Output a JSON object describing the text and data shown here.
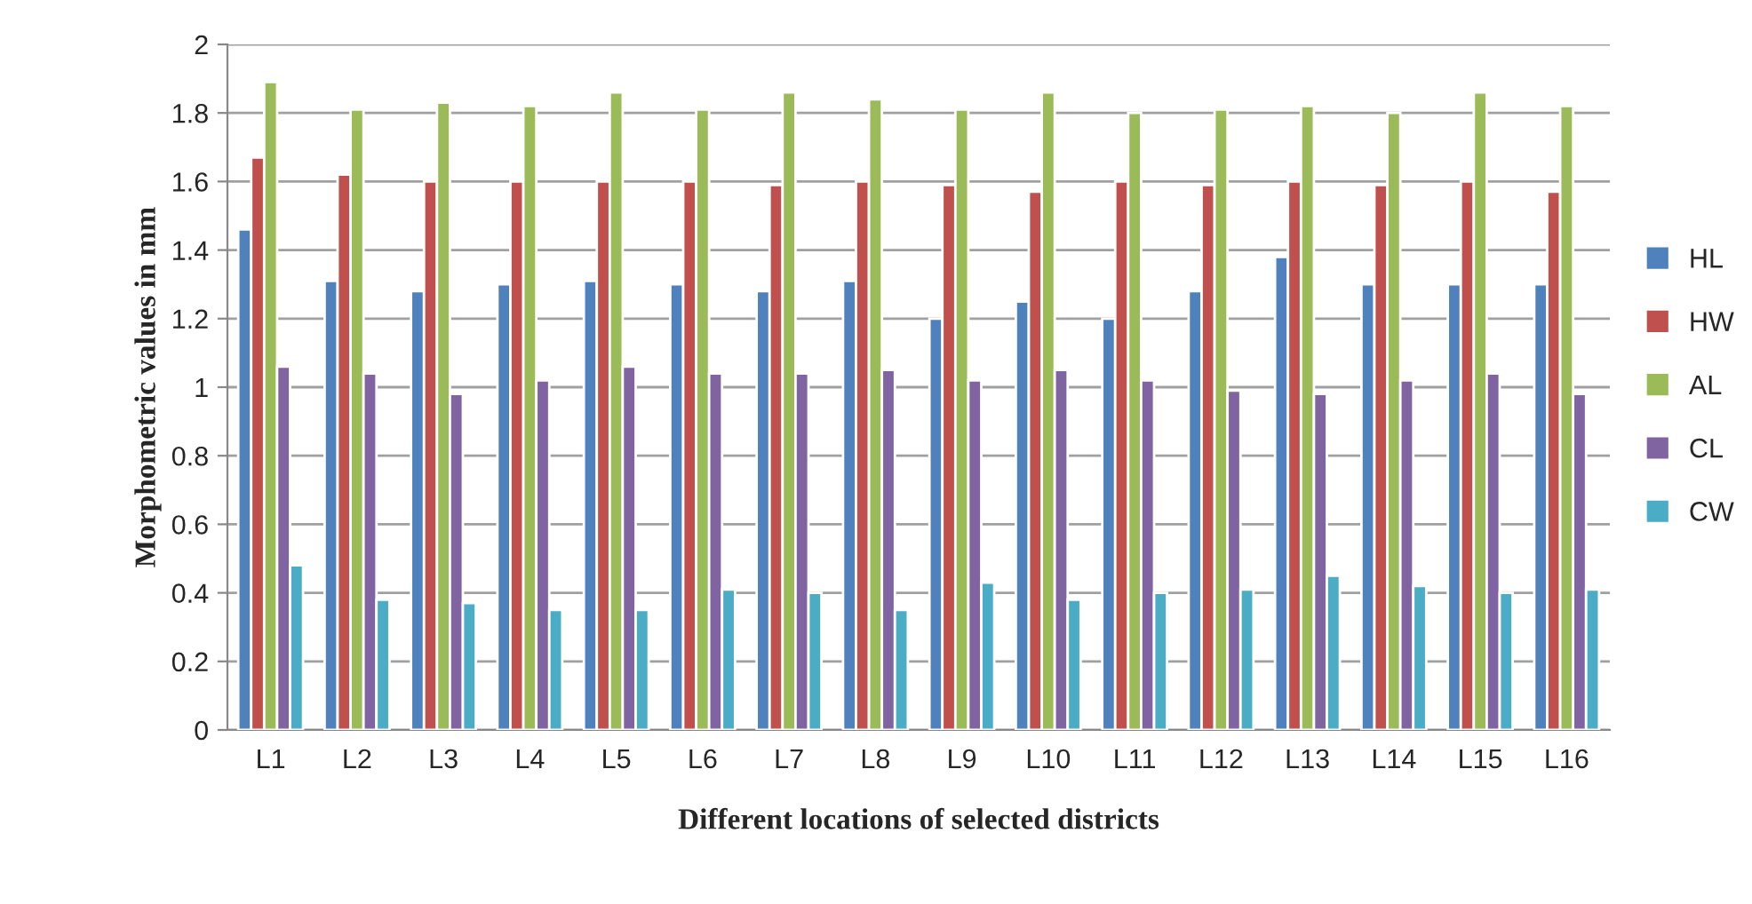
{
  "chart_data": {
    "type": "bar",
    "xlabel": "Different locations of selected districts",
    "ylabel": "Morphometric values in mm",
    "categories": [
      "L1",
      "L2",
      "L3",
      "L4",
      "L5",
      "L6",
      "L7",
      "L8",
      "L9",
      "L10",
      "L11",
      "L12",
      "L13",
      "L14",
      "L15",
      "L16"
    ],
    "series": [
      {
        "name": "HL",
        "color": "#4f81bd",
        "values": [
          1.46,
          1.31,
          1.28,
          1.3,
          1.31,
          1.3,
          1.28,
          1.31,
          1.2,
          1.25,
          1.2,
          1.28,
          1.38,
          1.3,
          1.3,
          1.3
        ]
      },
      {
        "name": "HW",
        "color": "#c0504d",
        "values": [
          1.67,
          1.62,
          1.6,
          1.6,
          1.6,
          1.6,
          1.59,
          1.6,
          1.59,
          1.57,
          1.6,
          1.59,
          1.6,
          1.59,
          1.6,
          1.57
        ]
      },
      {
        "name": "AL",
        "color": "#9bbb59",
        "values": [
          1.89,
          1.81,
          1.83,
          1.82,
          1.86,
          1.81,
          1.86,
          1.84,
          1.81,
          1.86,
          1.8,
          1.81,
          1.82,
          1.8,
          1.86,
          1.82
        ]
      },
      {
        "name": "CL",
        "color": "#8064a2",
        "values": [
          1.06,
          1.04,
          0.98,
          1.02,
          1.06,
          1.04,
          1.04,
          1.05,
          1.02,
          1.05,
          1.02,
          0.99,
          0.98,
          1.02,
          1.04,
          0.98
        ]
      },
      {
        "name": "CW",
        "color": "#4bacc6",
        "values": [
          0.48,
          0.38,
          0.37,
          0.35,
          0.35,
          0.41,
          0.4,
          0.35,
          0.43,
          0.38,
          0.4,
          0.41,
          0.45,
          0.42,
          0.4,
          0.41
        ]
      }
    ],
    "ylim": [
      0,
      2
    ],
    "yticks": [
      0,
      0.2,
      0.4,
      0.6,
      0.8,
      1,
      1.2,
      1.4,
      1.6,
      1.8,
      2
    ],
    "grid": "y",
    "legend": "right"
  }
}
